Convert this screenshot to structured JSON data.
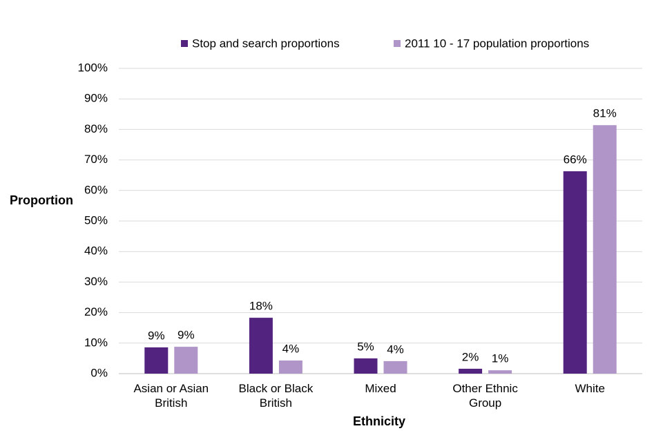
{
  "chart_data": {
    "type": "bar",
    "y_label": "Proportion",
    "x_label": "Ethnicity",
    "categories": [
      "Asian or Asian British",
      "Black or Black British",
      "Mixed",
      "Other Ethnic Group",
      "White"
    ],
    "series": [
      {
        "name": "Stop and search proportions",
        "color": "#52247f",
        "values": [
          8.6,
          18.3,
          5.0,
          1.6,
          66.3
        ],
        "value_labels": [
          "9%",
          "18%",
          "5%",
          "2%",
          "66%"
        ]
      },
      {
        "name": "2011 10 - 17 population proportions",
        "color": "#b095c8",
        "values": [
          8.8,
          4.3,
          4.1,
          1.1,
          81.4
        ],
        "value_labels": [
          "9%",
          "4%",
          "4%",
          "1%",
          "81%"
        ]
      }
    ],
    "ylim": [
      0,
      100
    ],
    "yticks": [
      {
        "value": 0,
        "label": "0%"
      },
      {
        "value": 10,
        "label": "10%"
      },
      {
        "value": 20,
        "label": "20%"
      },
      {
        "value": 30,
        "label": "30%"
      },
      {
        "value": 40,
        "label": "40%"
      },
      {
        "value": 50,
        "label": "50%"
      },
      {
        "value": 60,
        "label": "60%"
      },
      {
        "value": 70,
        "label": "70%"
      },
      {
        "value": 80,
        "label": "80%"
      },
      {
        "value": 90,
        "label": "90%"
      },
      {
        "value": 100,
        "label": "100%"
      }
    ],
    "grid": true,
    "legend": "top"
  }
}
